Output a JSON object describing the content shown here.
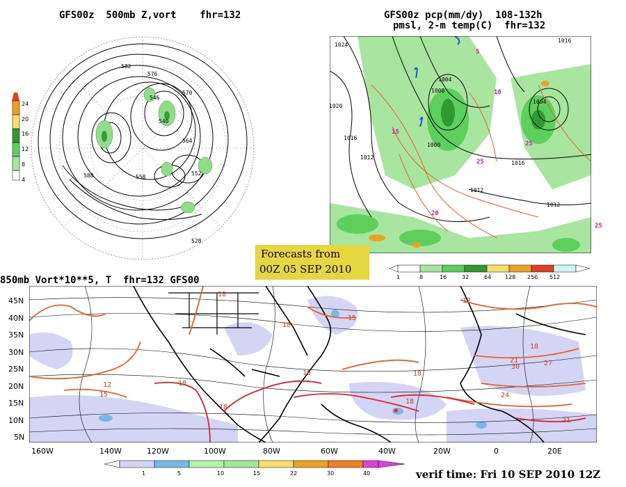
{
  "panels": {
    "top_left": {
      "title": "GFS00z  500mb Z,vort    fhr=132",
      "colorbar_ticks": [
        "24",
        "20",
        "16",
        "12",
        "8",
        "4"
      ],
      "contour_labels": [
        "582",
        "576",
        "570",
        "564",
        "558",
        "552",
        "546",
        "540",
        "528",
        "588"
      ]
    },
    "top_right": {
      "title_line1": "GFS00z pcp(mm/dy)  108-132h",
      "title_line2": "pmsl, 2-m temp(C)  fhr=132",
      "isobar_labels": [
        "1024",
        "1020",
        "1016",
        "1012",
        "1008",
        "1004",
        "1000"
      ],
      "temp_labels": [
        "5",
        "10",
        "15",
        "20",
        "25"
      ],
      "colorbar_ticks": [
        "1",
        "8",
        "16",
        "32",
        "64",
        "128",
        "256",
        "512"
      ]
    },
    "bottom": {
      "title": "850mb Vort*10**5, T  fhr=132 GFS00",
      "y_labels": [
        "45N",
        "40N",
        "35N",
        "30N",
        "25N",
        "20N",
        "15N",
        "10N",
        "5N"
      ],
      "x_labels": [
        "160W",
        "140W",
        "120W",
        "100W",
        "80W",
        "60W",
        "40W",
        "20W",
        "0",
        "20E"
      ],
      "temp_labels": [
        "12",
        "15",
        "18",
        "21",
        "24",
        "27",
        "30"
      ],
      "colorbar_ticks": [
        "1",
        "5",
        "10",
        "15",
        "22",
        "30",
        "40"
      ]
    }
  },
  "forecast_box": {
    "line1": "Forecasts from",
    "line2": "00Z 05 SEP 2010"
  },
  "verif_time": "verif time: Fri 10 SEP 2010 12Z",
  "colors": {
    "green_light": "#a8e6a0",
    "green_mid": "#5ccf5c",
    "green_dark": "#2f9a2f",
    "yellow": "#f5e06a",
    "orange": "#f0a020",
    "red": "#e04020",
    "cyan_light": "#d0f5f5",
    "lavender": "#d4d4f5",
    "blue": "#7ab8e8",
    "vort_green": "#b8f0b0",
    "pink": "#e040e0",
    "temp_line": "#e8602a",
    "temp_label": "#d04020",
    "isobar": "#000000",
    "pink_label": "#d020a0"
  }
}
